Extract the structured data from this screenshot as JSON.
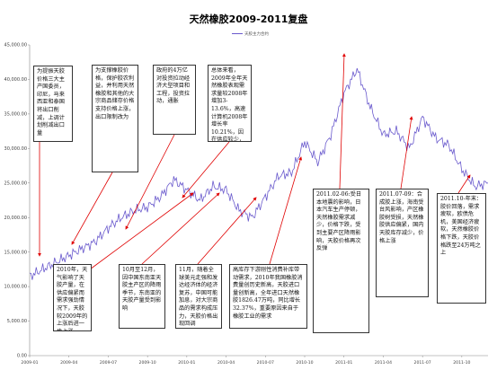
{
  "chart_data": {
    "type": "line",
    "title": "天然橡胶2009-2011复盘",
    "legend": {
      "placement": "top-center",
      "entries": [
        "天胶主力合约"
      ]
    },
    "grid": false,
    "ylim": [
      0,
      45000
    ],
    "yticks": [
      "0.00",
      "5,000.00",
      "10,000.00",
      "15,000.00",
      "20,000.00",
      "25,000.00",
      "30,000.00",
      "35,000.00",
      "40,000.00",
      "45,000.00"
    ],
    "xticks": [
      "2009-01",
      "2009-04",
      "2009-07",
      "2009-10",
      "2010-01",
      "2010-04",
      "2010-07",
      "2010-10",
      "2011-01",
      "2011-04",
      "2011-07",
      "2011-10"
    ],
    "series": [
      {
        "name": "天胶主力合约",
        "color": "#6a5acd",
        "x": [
          "2009-01",
          "2009-02",
          "2009-03",
          "2009-04",
          "2009-05",
          "2009-06",
          "2009-07",
          "2009-08",
          "2009-09",
          "2009-10",
          "2009-11",
          "2009-12",
          "2010-01",
          "2010-02",
          "2010-03",
          "2010-04",
          "2010-05",
          "2010-06",
          "2010-07",
          "2010-08",
          "2010-09",
          "2010-10",
          "2010-11",
          "2010-12",
          "2011-01",
          "2011-02",
          "2011-03",
          "2011-04",
          "2011-05",
          "2011-06",
          "2011-07",
          "2011-08",
          "2011-09",
          "2011-10",
          "2011-11",
          "2011-12"
        ],
        "values": [
          11500,
          12500,
          13500,
          14500,
          15500,
          16500,
          18500,
          20000,
          21000,
          21500,
          23000,
          25500,
          24000,
          22500,
          24500,
          24000,
          21000,
          20000,
          23000,
          26000,
          26500,
          31000,
          28000,
          32000,
          38000,
          41500,
          36000,
          32000,
          32500,
          30000,
          34500,
          31500,
          30500,
          27000,
          24500,
          25000
        ]
      }
    ]
  },
  "annotations": [
    "为提振天胶价格三大主产国委员，印尼，马来西亚和泰国将出口削减，上调计划削减出口量",
    "为支撑橡胶价格，保护胶农利益，并利用天然橡胶和其他的大宗商品储存价格支持价格上涨，出口限制改为",
    "政府的4万亿对投资拉动经济大型项目和工程，投资拉动，通胀",
    "总体来看，2009年全年天然橡胶表观需求量较2008年增加3-13.6%，高速计算机2008年增长率10.21%，因在供应较少，天胶走势平稳",
    "2010年，天气影响了天胶产量，在供应偏紧而需求强劲情况下，天胶较2009年的上涨后进一步上涨",
    "10月至12月，因中国东南亚天胶主产区的降雨季节，东南亚的天胶产量受到影响",
    "11月，随着全球美元走强和发达经济体的经济复苏，中国可能加息，对大宗商品的需求构成压力，天胶价格出现回调",
    "高库存下游刚性消费补库带动需求，2010年我国橡胶消费量创历史新高，天胶进口量创新高，全年进口天然橡胶1826.47万吨，同比增长32.37%，重要原因来自于橡胶工业的需求",
    "2011.02-06:受日本地震的影响，日本汽车生产停顿，天然橡胶需求减少，价格下跌，受到主要产区降雨影响，天胶价格再次反弹",
    "2011.07-09：合成胶上涨，海南受台风影响，产区橡胶树受损，天然橡胶供应偏紧，国内天胶库存减少，价格上涨",
    "2011.10-年末：胶价回落，需求疲软，欧债危机，美国经济疲软，天然橡胶价格下跌，天胶价格跌至24万吨之上"
  ]
}
